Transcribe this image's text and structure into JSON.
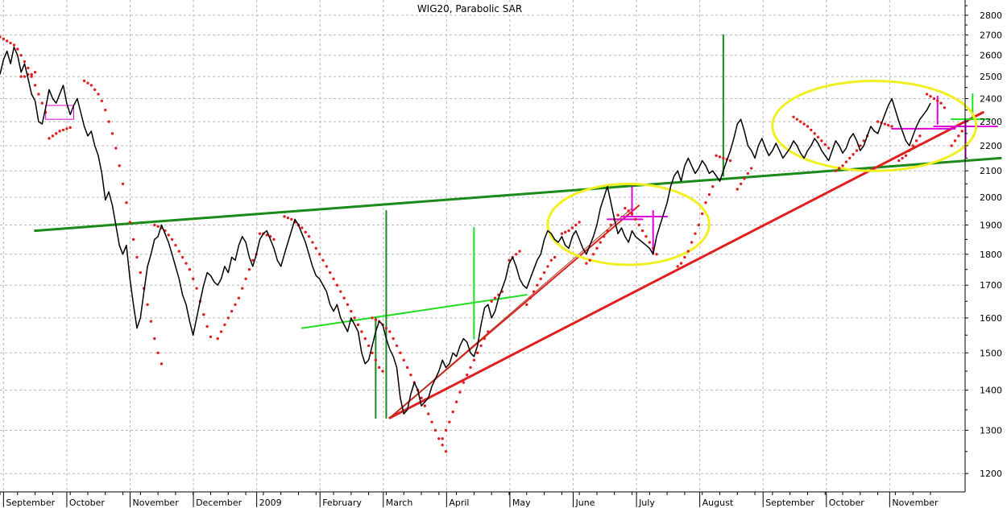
{
  "chart_data": {
    "type": "line",
    "title": "WIG20, Parabolic SAR",
    "xlabel": "",
    "ylabel": "",
    "y_scale": "log",
    "ylim": [
      1160,
      2880
    ],
    "y_ticks": [
      1200,
      1300,
      1400,
      1500,
      1600,
      1700,
      1800,
      1900,
      2000,
      2100,
      2200,
      2300,
      2400,
      2500,
      2600,
      2700,
      2800
    ],
    "x_labels": [
      "September",
      "October",
      "November",
      "December",
      "2009",
      "February",
      "March",
      "April",
      "May",
      "June",
      "July",
      "August",
      "September",
      "October",
      "November"
    ],
    "grid": true,
    "series": [
      {
        "role": "price",
        "color": "#000000",
        "values": [
          2510,
          2580,
          2620,
          2560,
          2640,
          2600,
          2520,
          2560,
          2490,
          2420,
          2390,
          2300,
          2290,
          2360,
          2440,
          2400,
          2380,
          2420,
          2460,
          2380,
          2330,
          2370,
          2400,
          2340,
          2280,
          2240,
          2260,
          2200,
          2160,
          2090,
          1990,
          2020,
          1970,
          1900,
          1830,
          1800,
          1830,
          1720,
          1640,
          1570,
          1600,
          1680,
          1760,
          1800,
          1850,
          1860,
          1900,
          1870,
          1840,
          1800,
          1760,
          1720,
          1670,
          1640,
          1590,
          1550,
          1600,
          1650,
          1700,
          1740,
          1730,
          1710,
          1700,
          1720,
          1760,
          1740,
          1790,
          1780,
          1830,
          1860,
          1840,
          1790,
          1760,
          1800,
          1850,
          1870,
          1880,
          1850,
          1820,
          1780,
          1760,
          1800,
          1840,
          1880,
          1920,
          1900,
          1870,
          1840,
          1800,
          1760,
          1730,
          1720,
          1700,
          1680,
          1640,
          1620,
          1640,
          1600,
          1580,
          1560,
          1600,
          1580,
          1560,
          1500,
          1470,
          1480,
          1520,
          1560,
          1590,
          1580,
          1540,
          1510,
          1490,
          1460,
          1380,
          1340,
          1350,
          1390,
          1420,
          1400,
          1360,
          1370,
          1380,
          1410,
          1430,
          1450,
          1480,
          1460,
          1470,
          1500,
          1490,
          1520,
          1540,
          1530,
          1500,
          1490,
          1520,
          1580,
          1630,
          1640,
          1600,
          1620,
          1660,
          1690,
          1720,
          1770,
          1790,
          1760,
          1720,
          1700,
          1690,
          1720,
          1750,
          1780,
          1800,
          1850,
          1880,
          1870,
          1850,
          1840,
          1860,
          1830,
          1820,
          1860,
          1880,
          1850,
          1820,
          1800,
          1830,
          1860,
          1900,
          1960,
          2000,
          2040,
          1980,
          1920,
          1870,
          1890,
          1860,
          1840,
          1880,
          1860,
          1850,
          1840,
          1830,
          1820,
          1800,
          1860,
          1900,
          1940,
          1980,
          2040,
          2080,
          2100,
          2060,
          2120,
          2150,
          2120,
          2090,
          2110,
          2140,
          2120,
          2090,
          2100,
          2080,
          2060,
          2100,
          2140,
          2180,
          2230,
          2290,
          2310,
          2260,
          2200,
          2180,
          2150,
          2200,
          2230,
          2190,
          2160,
          2180,
          2210,
          2180,
          2150,
          2170,
          2190,
          2220,
          2200,
          2170,
          2150,
          2180,
          2200,
          2230,
          2210,
          2180,
          2160,
          2140,
          2180,
          2220,
          2200,
          2170,
          2190,
          2230,
          2250,
          2220,
          2180,
          2200,
          2240,
          2280,
          2260,
          2250,
          2290,
          2330,
          2370,
          2400,
          2350,
          2300,
          2260,
          2220,
          2200,
          2240,
          2280,
          2310,
          2330,
          2350,
          2380
        ]
      },
      {
        "role": "sar",
        "name": "Parabolic SAR",
        "color": "#e02020",
        "segments": [
          {
            "start": 0,
            "values": [
              2690,
              2680,
              2670,
              2660,
              2650,
              2630,
              2600,
              2570,
              2540,
              2500,
              2460,
              2420,
              2380,
              2340
            ]
          },
          {
            "start": 6,
            "values": [
              2500,
              2500,
              2510,
              2510,
              2520
            ]
          },
          {
            "start": 14,
            "values": [
              2230,
              2240,
              2250,
              2260,
              2265,
              2270,
              2275
            ]
          },
          {
            "start": 24,
            "values": [
              2480,
              2470,
              2460,
              2440,
              2420,
              2390,
              2350,
              2300,
              2250,
              2190,
              2120,
              2050,
              1980,
              1910,
              1850,
              1790,
              1740,
              1690,
              1640,
              1590,
              1540,
              1500,
              1470
            ]
          },
          {
            "start": 44,
            "values": [
              1900,
              1895,
              1890,
              1880,
              1865,
              1850,
              1830,
              1810,
              1790,
              1770,
              1750,
              1720,
              1690,
              1650,
              1610,
              1575,
              1545
            ]
          },
          {
            "start": 62,
            "values": [
              1540,
              1560,
              1580,
              1600,
              1620,
              1640,
              1660,
              1690,
              1720,
              1750,
              1780,
              1800
            ]
          },
          {
            "start": 74,
            "values": [
              1870,
              1870,
              1865,
              1860,
              1850
            ]
          },
          {
            "start": 81,
            "values": [
              1930,
              1925,
              1920,
              1910,
              1900,
              1890,
              1875,
              1860,
              1840,
              1820,
              1800,
              1780,
              1760,
              1740,
              1720,
              1700,
              1680,
              1660,
              1640,
              1620,
              1600,
              1580,
              1560,
              1540,
              1520,
              1500,
              1480,
              1460,
              1450
            ]
          },
          {
            "start": 106,
            "values": [
              1600,
              1595,
              1590,
              1580,
              1570,
              1560,
              1540,
              1520,
              1500,
              1480,
              1460,
              1440,
              1420,
              1400,
              1380,
              1360,
              1340,
              1320,
              1300,
              1280,
              1265,
              1250
            ]
          },
          {
            "start": 126,
            "values": [
              1280,
              1300,
              1320,
              1345,
              1370,
              1395,
              1420,
              1440,
              1460,
              1480,
              1500,
              1520,
              1540,
              1560
            ]
          },
          {
            "start": 140,
            "values": [
              1650,
              1660,
              1670,
              1680
            ]
          },
          {
            "start": 145,
            "values": [
              1780,
              1790,
              1800,
              1810
            ]
          },
          {
            "start": 150,
            "values": [
              1640,
              1660,
              1680,
              1700,
              1720,
              1740,
              1760,
              1780,
              1790
            ]
          },
          {
            "start": 160,
            "values": [
              1870,
              1875,
              1880,
              1890,
              1900,
              1910
            ]
          },
          {
            "start": 167,
            "values": [
              1770,
              1780,
              1800,
              1820,
              1840,
              1860,
              1880,
              1900,
              1920,
              1935
            ]
          },
          {
            "start": 178,
            "values": [
              1960,
              1950,
              1940,
              1920,
              1900,
              1880,
              1860,
              1840,
              1820,
              1800
            ]
          },
          {
            "start": 193,
            "values": [
              1760,
              1770,
              1790,
              1810,
              1840,
              1870,
              1900,
              1940,
              1980,
              2010,
              2040
            ]
          },
          {
            "start": 204,
            "values": [
              2160,
              2155,
              2150,
              2145,
              2140
            ]
          },
          {
            "start": 210,
            "values": [
              2030,
              2050,
              2070,
              2090,
              2110
            ]
          },
          {
            "start": 226,
            "values": [
              2320,
              2310,
              2300,
              2290,
              2280,
              2265,
              2250,
              2235,
              2220,
              2205,
              2190
            ]
          },
          {
            "start": 238,
            "values": [
              2100,
              2110,
              2120,
              2135,
              2150,
              2165,
              2180,
              2200,
              2220,
              2240
            ]
          },
          {
            "start": 250,
            "values": [
              2300,
              2295,
              2290,
              2285,
              2280
            ]
          },
          {
            "start": 256,
            "values": [
              2140,
              2150,
              2160,
              2180,
              2200,
              2220,
              2240
            ]
          },
          {
            "start": 264,
            "values": [
              2420,
              2410,
              2400,
              2390,
              2380,
              2360
            ]
          },
          {
            "start": 271,
            "values": [
              2200,
              2220,
              2240,
              2260
            ]
          }
        ]
      }
    ],
    "annotations": [
      {
        "shape": "line",
        "color": "#1a8a1a",
        "from": [
          10,
          1880
        ],
        "to": [
          285,
          2150
        ]
      },
      {
        "shape": "line",
        "color": "#e02020",
        "from": [
          111,
          1330
        ],
        "to": [
          280,
          2340
        ]
      },
      {
        "shape": "line",
        "color": "#e02020",
        "from": [
          111,
          1330
        ],
        "to": [
          182,
          1970
        ]
      },
      {
        "shape": "line",
        "color": "#a04020",
        "from": [
          111,
          1330
        ],
        "to": [
          180,
          1960
        ]
      },
      {
        "shape": "line",
        "color": "#22dd22",
        "from": [
          86,
          1570
        ],
        "to": [
          150,
          1670
        ]
      },
      {
        "shape": "line",
        "color": "#1a8a1a",
        "from": [
          107,
          1330
        ],
        "to": [
          107,
          1600
        ]
      },
      {
        "shape": "line",
        "color": "#1a8a1a",
        "from": [
          110,
          1330
        ],
        "to": [
          110,
          1950
        ]
      },
      {
        "shape": "line",
        "color": "#22dd22",
        "from": [
          135,
          1540
        ],
        "to": [
          135,
          1890
        ]
      },
      {
        "shape": "line",
        "color": "#1a8a1a",
        "from": [
          206,
          2080
        ],
        "to": [
          206,
          2700
        ]
      },
      {
        "shape": "line",
        "color": "#dd00dd",
        "from": [
          173,
          1920
        ],
        "to": [
          183,
          1920
        ]
      },
      {
        "shape": "line",
        "color": "#dd00dd",
        "from": [
          177,
          1930
        ],
        "to": [
          190,
          1930
        ]
      },
      {
        "shape": "line",
        "color": "#dd00dd",
        "from": [
          186,
          1800
        ],
        "to": [
          186,
          1950
        ]
      },
      {
        "shape": "line",
        "color": "#dd00dd",
        "from": [
          180,
          1930
        ],
        "to": [
          180,
          2040
        ]
      },
      {
        "shape": "line",
        "color": "#dd00dd",
        "from": [
          254,
          2270
        ],
        "to": [
          272,
          2270
        ]
      },
      {
        "shape": "line",
        "color": "#dd00dd",
        "from": [
          266,
          2280
        ],
        "to": [
          284,
          2280
        ]
      },
      {
        "shape": "line",
        "color": "#dd00dd",
        "from": [
          275,
          2150
        ],
        "to": [
          275,
          2310
        ]
      },
      {
        "shape": "line",
        "color": "#dd00dd",
        "from": [
          267,
          2290
        ],
        "to": [
          267,
          2410
        ]
      },
      {
        "shape": "line",
        "color": "#22dd22",
        "from": [
          271,
          2310
        ],
        "to": [
          282,
          2310
        ]
      },
      {
        "shape": "line",
        "color": "#22dd22",
        "from": [
          277,
          2310
        ],
        "to": [
          277,
          2420
        ]
      },
      {
        "shape": "ellipse",
        "color": "#f0f020",
        "center": [
          179,
          1870
        ],
        "rx": 23,
        "ry_low": 1765,
        "ry_high": 2050
      },
      {
        "shape": "ellipse",
        "color": "#f0f020",
        "center": [
          249,
          2250
        ],
        "rx": 29,
        "ry_low": 2100,
        "ry_high": 2480
      },
      {
        "shape": "rect",
        "color": "#dd00dd",
        "from": [
          13,
          2310
        ],
        "to": [
          21,
          2370
        ]
      }
    ]
  }
}
